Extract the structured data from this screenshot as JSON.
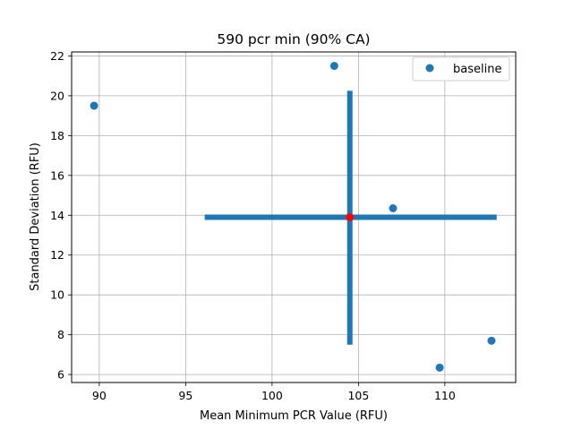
{
  "chart_data": {
    "type": "scatter",
    "title": "590 pcr min (90% CA)",
    "xlabel": "Mean Minimum PCR Value (RFU)",
    "ylabel": "Standard Deviation (RFU)",
    "xlim": [
      88.4,
      114.1
    ],
    "ylim": [
      5.6,
      22.2
    ],
    "xticks": [
      90,
      95,
      100,
      105,
      110
    ],
    "yticks": [
      6,
      8,
      10,
      12,
      14,
      16,
      18,
      20,
      22
    ],
    "xtick_labels": [
      "90",
      "95",
      "100",
      "105",
      "110"
    ],
    "ytick_labels": [
      "6",
      "8",
      "10",
      "12",
      "14",
      "16",
      "18",
      "20",
      "22"
    ],
    "grid": true,
    "legend_position": "top-right",
    "series": [
      {
        "name": "baseline",
        "color": "#1f77b4",
        "x": [
          89.7,
          103.6,
          107.0,
          109.7,
          112.7
        ],
        "y": [
          19.5,
          21.5,
          14.35,
          6.35,
          7.7
        ]
      }
    ],
    "center": {
      "x": 104.5,
      "y": 13.9,
      "color": "#ff0000"
    },
    "crosshair": {
      "color": "#1f77b4",
      "x_range": [
        96.1,
        113.0
      ],
      "y_range": [
        7.5,
        20.25
      ]
    }
  }
}
